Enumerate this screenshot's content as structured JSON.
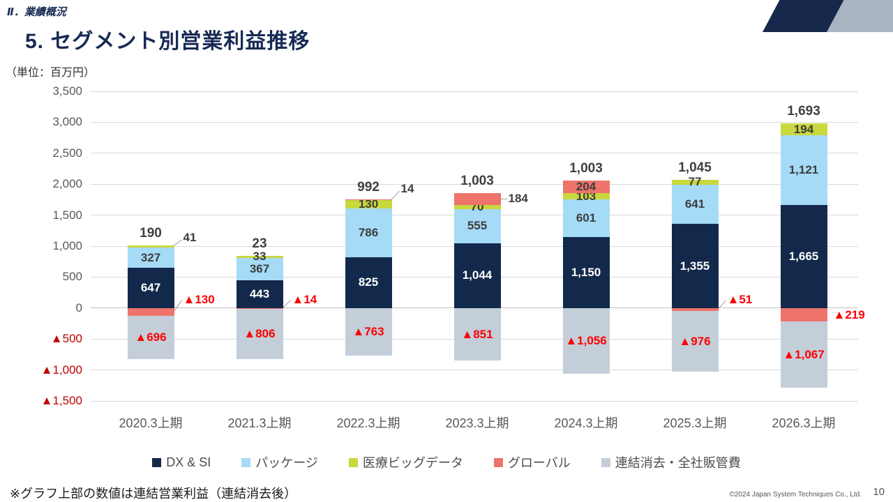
{
  "header": {
    "section": "Ⅱ．業績概況",
    "title": "5. セグメント別営業利益推移"
  },
  "chart_data": {
    "type": "stacked-bar",
    "title": "5. セグメント別営業利益推移",
    "unit_label": "（単位：百万円）",
    "categories": [
      "2020.3上期",
      "2021.3上期",
      "2022.3上期",
      "2023.3上期",
      "2024.3上期",
      "2025.3上期",
      "2026.3上期"
    ],
    "series": [
      {
        "name": "DX & SI",
        "color": "#13294b",
        "values": [
          647,
          443,
          825,
          1044,
          1150,
          1355,
          1665
        ]
      },
      {
        "name": "パッケージ",
        "color": "#a5dbf7",
        "values": [
          327,
          367,
          786,
          555,
          601,
          641,
          1121
        ]
      },
      {
        "name": "医療ビッグデータ",
        "color": "#c9d83c",
        "values": [
          41,
          33,
          130,
          70,
          103,
          77,
          194
        ]
      },
      {
        "name": "グローバル",
        "color": "#ee736b",
        "values": [
          -130,
          -14,
          14,
          184,
          204,
          -51,
          -219
        ]
      },
      {
        "name": "連結消去・全社販管費",
        "color": "#c3ced9",
        "values": [
          -696,
          -806,
          -763,
          -851,
          -1056,
          -976,
          -1067
        ]
      }
    ],
    "totals": [
      190,
      23,
      992,
      1003,
      1003,
      1045,
      1693
    ],
    "y_ticks": [
      3500,
      3000,
      2500,
      2000,
      1500,
      1000,
      500,
      0,
      -500,
      -1000,
      -1500
    ],
    "ylim": [
      -1500,
      3500
    ],
    "grid": true,
    "legend_position": "bottom"
  },
  "footer": {
    "note": "※グラフ上部の数値は連結営業利益（連結消去後）",
    "copyright": "©2024 Japan System Techniques Co., Ltd.",
    "page": "10"
  },
  "colors": {
    "title": "#172a54",
    "negative_axis": "#c00000",
    "negative_label": "#fe0000",
    "gridline": "#d9d9d9"
  }
}
